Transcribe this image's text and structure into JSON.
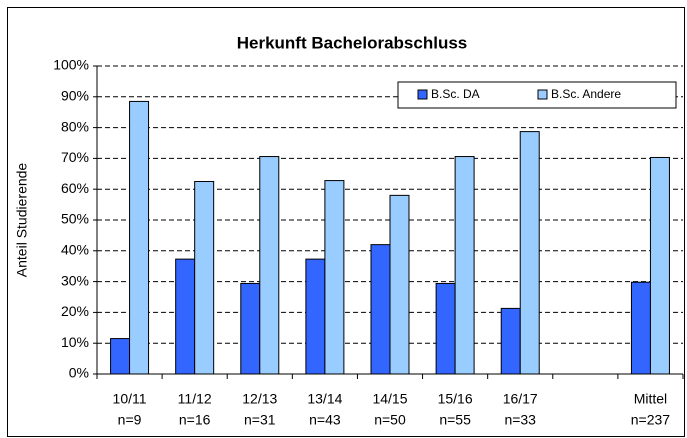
{
  "chart_data": {
    "type": "bar",
    "title": "Herkunft Bachelorabschluss",
    "y_label": "Anteil Studierende",
    "categories": [
      "10/11",
      "11/12",
      "12/13",
      "13/14",
      "14/15",
      "15/16",
      "16/17",
      null,
      "Mittel"
    ],
    "n_labels": [
      "n=9",
      "n=16",
      "n=31",
      "n=43",
      "n=50",
      "n=55",
      "n=33",
      null,
      "n=237"
    ],
    "series": [
      {
        "name": "B.Sc. DA",
        "color": "#3366ff",
        "values": [
          11.5,
          37.3,
          29.4,
          37.3,
          42,
          29.4,
          21.3,
          null,
          29.8
        ]
      },
      {
        "name": "B.Sc. Andere",
        "color": "#99ccff",
        "values": [
          88.5,
          62.5,
          70.6,
          62.8,
          58,
          70.6,
          78.7,
          null,
          70.3
        ]
      }
    ],
    "ylim": [
      0,
      100
    ],
    "yticks": [
      {
        "value": 0,
        "label": "0%"
      },
      {
        "value": 10,
        "label": "10%"
      },
      {
        "value": 20,
        "label": "20%"
      },
      {
        "value": 30,
        "label": "30%"
      },
      {
        "value": 40,
        "label": "40%"
      },
      {
        "value": 50,
        "label": "50%"
      },
      {
        "value": 60,
        "label": "60%"
      },
      {
        "value": 70,
        "label": "70%"
      },
      {
        "value": 80,
        "label": "80%"
      },
      {
        "value": 90,
        "label": "90%"
      },
      {
        "value": 100,
        "label": "100%"
      }
    ],
    "grid": true,
    "legend": "top-right"
  }
}
